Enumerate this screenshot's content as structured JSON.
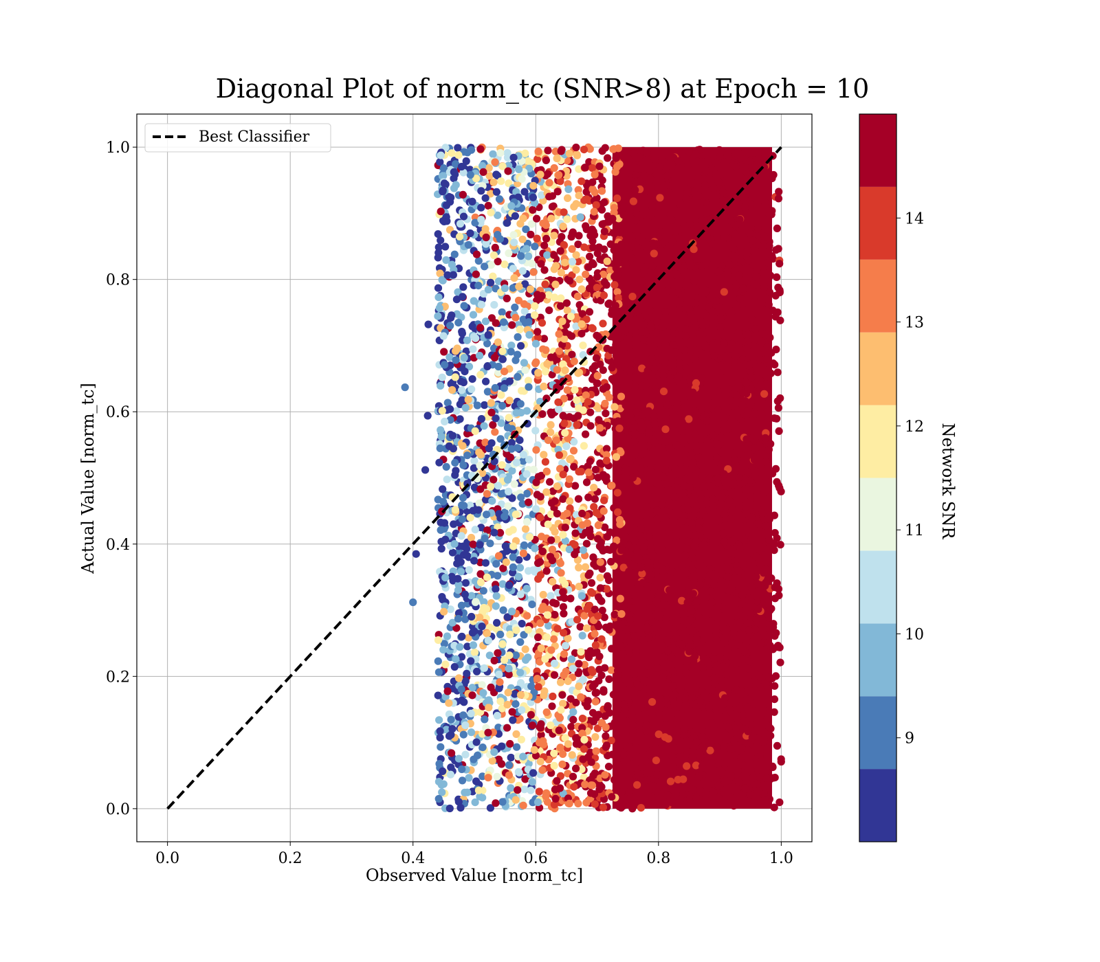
{
  "chart_data": {
    "type": "scatter",
    "title": "Diagonal Plot of norm_tc (SNR>8) at Epoch = 10",
    "xlabel": "Observed Value [norm_tc]",
    "ylabel": "Actual Value [norm_tc]",
    "xlim": [
      -0.05,
      1.05
    ],
    "ylim": [
      -0.05,
      1.05
    ],
    "xticks": [
      "0.0",
      "0.2",
      "0.4",
      "0.6",
      "0.8",
      "1.0"
    ],
    "yticks": [
      "0.0",
      "0.2",
      "0.4",
      "0.6",
      "0.8",
      "1.0"
    ],
    "grid": true,
    "legend": {
      "placement": "upper-left",
      "entries": [
        "Best Classifier"
      ]
    },
    "reference_line": {
      "name": "Best Classifier",
      "x": [
        0.0,
        1.0
      ],
      "y": [
        0.0,
        1.0
      ],
      "style": "dashed",
      "color": "#000000"
    },
    "scatter_summary": {
      "x_range": [
        0.42,
        1.0
      ],
      "y_range": [
        0.0,
        1.0
      ],
      "outliers": [
        {
          "x": 0.387,
          "y": 0.637
        },
        {
          "x": 0.405,
          "y": 0.385
        },
        {
          "x": 0.4,
          "y": 0.312
        },
        {
          "x": 0.425,
          "y": 0.732
        },
        {
          "x": 0.424,
          "y": 0.594
        },
        {
          "x": 0.42,
          "y": 0.512
        }
      ],
      "snr_trend": "low SNR (blue) near x≈0.42–0.58, mid SNR (yellow/orange) near x≈0.58–0.72, high SNR (dark red) dense for x≈0.72–1.0"
    },
    "colorbar": {
      "label": "Network SNR",
      "range": [
        8.0,
        15.0
      ],
      "ticks": [
        "9",
        "10",
        "11",
        "12",
        "13",
        "14"
      ],
      "bins": [
        {
          "from": 8.0,
          "to": 8.7,
          "color": "#313695"
        },
        {
          "from": 8.7,
          "to": 9.4,
          "color": "#4a7bb7"
        },
        {
          "from": 9.4,
          "to": 10.1,
          "color": "#82b8d7"
        },
        {
          "from": 10.1,
          "to": 10.8,
          "color": "#bfe1ed"
        },
        {
          "from": 10.8,
          "to": 11.5,
          "color": "#eaf6e0"
        },
        {
          "from": 11.5,
          "to": 12.2,
          "color": "#feeda3"
        },
        {
          "from": 12.2,
          "to": 12.9,
          "color": "#fdbe70"
        },
        {
          "from": 12.9,
          "to": 13.6,
          "color": "#f57d4b"
        },
        {
          "from": 13.6,
          "to": 14.3,
          "color": "#d93a2b"
        },
        {
          "from": 14.3,
          "to": 15.0,
          "color": "#a50026"
        }
      ]
    }
  }
}
